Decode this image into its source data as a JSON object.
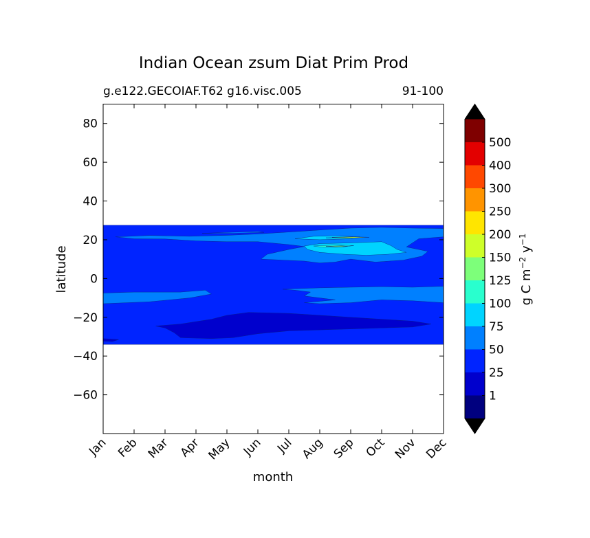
{
  "chart_data": {
    "type": "heatmap",
    "title": "Indian Ocean zsum Diat Prim Prod",
    "subtitle_left": "g.e122.GECOIAF.T62 g16.visc.005",
    "subtitle_right": "91-100",
    "xlabel": "month",
    "ylabel": "latitude",
    "x_categories": [
      "Jan",
      "Feb",
      "Mar",
      "Apr",
      "May",
      "Jun",
      "Jul",
      "Aug",
      "Sep",
      "Oct",
      "Nov",
      "Dec"
    ],
    "xlim": [
      0,
      11
    ],
    "ylim": [
      -80,
      90
    ],
    "y_ticks": [
      80,
      60,
      40,
      20,
      0,
      -20,
      -40,
      -60
    ],
    "y_tick_labels": [
      "80",
      "60",
      "40",
      "20",
      "0",
      "−20",
      "−40",
      "−60"
    ],
    "data_extent_lat": [
      -34,
      27.5
    ],
    "colorbar": {
      "label_parts": [
        "g C m",
        "−2",
        " y",
        "−1"
      ],
      "levels": [
        "1",
        "25",
        "50",
        "75",
        "100",
        "125",
        "150",
        "200",
        "250",
        "300",
        "400",
        "500"
      ],
      "colors": [
        "#00007f",
        "#0000cd",
        "#0024ff",
        "#0080ff",
        "#00d4ff",
        "#29ffce",
        "#7dff7a",
        "#ceff29",
        "#ffe500",
        "#ff9400",
        "#ff4800",
        "#e30000",
        "#7f0000"
      ],
      "extend_low_color": "#000000",
      "extend_high_color": "#000000"
    },
    "regions": [
      {
        "name": "base-25-50",
        "color": "#0024ff",
        "points": [
          [
            0,
            27.5
          ],
          [
            11,
            27.5
          ],
          [
            11,
            -34
          ],
          [
            0,
            -34
          ]
        ]
      },
      {
        "name": "north-50-75-a",
        "color": "#0080ff",
        "points": [
          [
            0.4,
            21.5
          ],
          [
            1.5,
            22.2
          ],
          [
            2.8,
            21.8
          ],
          [
            4,
            22.3
          ],
          [
            5,
            23
          ],
          [
            6,
            24
          ],
          [
            7,
            25
          ],
          [
            8,
            26
          ],
          [
            9,
            26.4
          ],
          [
            10,
            26
          ],
          [
            11,
            25.8
          ],
          [
            11,
            21.5
          ],
          [
            10.2,
            20.5
          ],
          [
            9.8,
            16.3
          ],
          [
            10.5,
            14
          ],
          [
            10.3,
            11.5
          ],
          [
            9.7,
            9.5
          ],
          [
            8.8,
            8.5
          ],
          [
            8,
            10
          ],
          [
            7.5,
            8.5
          ],
          [
            7,
            8
          ],
          [
            6.5,
            9
          ],
          [
            5.1,
            10
          ],
          [
            5.3,
            12.5
          ],
          [
            6,
            15
          ],
          [
            6.5,
            16.5
          ],
          [
            6,
            17.5
          ],
          [
            5,
            19
          ],
          [
            4,
            19
          ],
          [
            3,
            19.4
          ],
          [
            2,
            20.4
          ],
          [
            1,
            20.5
          ]
        ]
      },
      {
        "name": "north-50-75-b",
        "color": "#0080ff",
        "points": [
          [
            3.2,
            23.3
          ],
          [
            4,
            23.8
          ],
          [
            5,
            24.3
          ],
          [
            5.2,
            23.8
          ],
          [
            4.2,
            23.3
          ]
        ]
      },
      {
        "name": "south-50-75-a",
        "color": "#0080ff",
        "points": [
          [
            0,
            -7.5
          ],
          [
            1,
            -7
          ],
          [
            2.5,
            -7
          ],
          [
            3.3,
            -6
          ],
          [
            3.5,
            -8
          ],
          [
            2.8,
            -10
          ],
          [
            1.5,
            -12
          ],
          [
            0,
            -13
          ]
        ]
      },
      {
        "name": "south-50-75-b",
        "color": "#0080ff",
        "points": [
          [
            5.8,
            -5.5
          ],
          [
            7,
            -4.8
          ],
          [
            8,
            -4.5
          ],
          [
            9,
            -4.2
          ],
          [
            10,
            -4.5
          ],
          [
            11,
            -4
          ],
          [
            11,
            -12.5
          ],
          [
            10,
            -11.5
          ],
          [
            9,
            -11
          ],
          [
            8,
            -12.5
          ],
          [
            7,
            -13
          ],
          [
            6.5,
            -12.5
          ],
          [
            7.5,
            -11
          ],
          [
            7,
            -10
          ],
          [
            6.5,
            -9
          ],
          [
            6.7,
            -7
          ],
          [
            6.2,
            -6
          ]
        ]
      },
      {
        "name": "north-75-100",
        "color": "#00d4ff",
        "points": [
          [
            6.5,
            16.8
          ],
          [
            7,
            18
          ],
          [
            8,
            18.4
          ],
          [
            9,
            19
          ],
          [
            9.3,
            17
          ],
          [
            9.5,
            15
          ],
          [
            9.8,
            13.5
          ],
          [
            9.2,
            12.5
          ],
          [
            8.5,
            12
          ],
          [
            7.8,
            12.5
          ],
          [
            7,
            13.5
          ],
          [
            6.6,
            15
          ]
        ]
      },
      {
        "name": "north-75-100-b",
        "color": "#00d4ff",
        "points": [
          [
            6.2,
            20.5
          ],
          [
            6.8,
            21.8
          ],
          [
            7.5,
            22
          ],
          [
            8.3,
            21.5
          ],
          [
            8,
            20.5
          ],
          [
            7,
            20
          ]
        ]
      },
      {
        "name": "north-100-125",
        "color": "#29ffce",
        "points": [
          [
            6.8,
            16.8
          ],
          [
            7.5,
            17.3
          ],
          [
            8.1,
            17
          ],
          [
            7.7,
            16.2
          ],
          [
            7.1,
            16.1
          ]
        ]
      },
      {
        "name": "north-100-125-b",
        "color": "#29ffce",
        "points": [
          [
            7.2,
            21
          ],
          [
            7.9,
            21.4
          ],
          [
            8.4,
            21.3
          ],
          [
            8,
            20.7
          ],
          [
            7.5,
            20.7
          ]
        ]
      },
      {
        "name": "north-125-150",
        "color": "#7dff7a",
        "points": [
          [
            7.2,
            16.6
          ],
          [
            7.7,
            16.9
          ],
          [
            7.9,
            16.6
          ],
          [
            7.5,
            16.4
          ]
        ]
      },
      {
        "name": "north-150-200",
        "color": "#ceff29",
        "points": [
          [
            7.4,
            21.3
          ],
          [
            8.1,
            21.5
          ],
          [
            8.6,
            21.3
          ],
          [
            8.1,
            21
          ]
        ]
      },
      {
        "name": "south-1-25",
        "color": "#0000cd",
        "points": [
          [
            1.7,
            -24.5
          ],
          [
            2.5,
            -23.5
          ],
          [
            3.5,
            -21
          ],
          [
            4,
            -19
          ],
          [
            4.7,
            -17.5
          ],
          [
            6,
            -18
          ],
          [
            7,
            -19
          ],
          [
            8,
            -20
          ],
          [
            9,
            -21
          ],
          [
            10,
            -22
          ],
          [
            10.6,
            -23.5
          ],
          [
            10,
            -25
          ],
          [
            9,
            -25.5
          ],
          [
            8,
            -26
          ],
          [
            7,
            -26.5
          ],
          [
            6,
            -27
          ],
          [
            5,
            -28.5
          ],
          [
            4.2,
            -30.5
          ],
          [
            3.5,
            -31
          ],
          [
            2.5,
            -30.5
          ],
          [
            2.3,
            -28
          ],
          [
            2,
            -25.5
          ]
        ]
      },
      {
        "name": "south-1-25-b",
        "color": "#0000cd",
        "points": [
          [
            0,
            -31
          ],
          [
            0.5,
            -31.5
          ],
          [
            0.3,
            -32.5
          ],
          [
            0,
            -32.3
          ]
        ]
      }
    ]
  }
}
